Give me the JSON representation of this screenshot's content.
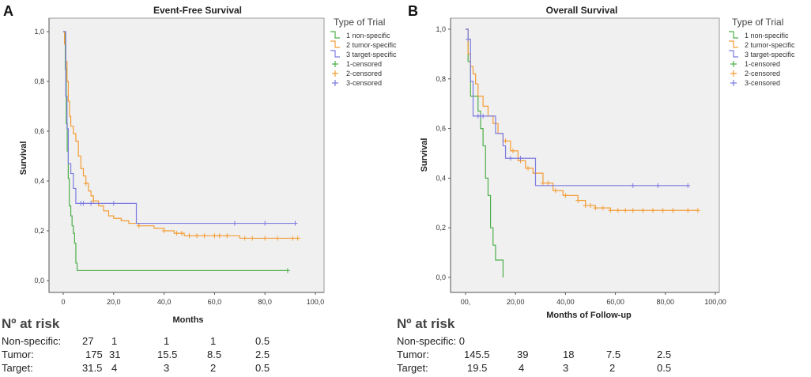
{
  "panels": [
    {
      "letter": "A",
      "chart_data": {
        "type": "line",
        "title": "Event-Free Survival",
        "xlabel": "Months",
        "ylabel": "Survival",
        "xlim": [
          0,
          100
        ],
        "ylim": [
          0,
          1
        ],
        "xticks": [
          0,
          20,
          40,
          60,
          80,
          100
        ],
        "xtick_labels": [
          "0",
          "20,0",
          "40,0",
          "60,0",
          "80,0",
          "100,0"
        ],
        "yticks": [
          0,
          0.2,
          0.4,
          0.6,
          0.8,
          1.0
        ],
        "ytick_labels": [
          "0,0",
          "0,2",
          "0,4",
          "0,6",
          "0,8",
          "1,0"
        ],
        "legend_title": "Type of Trial",
        "legend": [
          "1 non-specific",
          "2 tumor-specific",
          "3 target-specific",
          "1-censored",
          "2-censored",
          "3-censored"
        ],
        "series": [
          {
            "name": "1 non-specific",
            "color": "#4daf4a",
            "steps": [
              [
                0,
                1.0
              ],
              [
                0.8,
                0.85
              ],
              [
                1.2,
                0.63
              ],
              [
                1.6,
                0.52
              ],
              [
                2.0,
                0.41
              ],
              [
                2.4,
                0.3
              ],
              [
                3.0,
                0.26
              ],
              [
                3.5,
                0.22
              ],
              [
                4.0,
                0.19
              ],
              [
                4.5,
                0.15
              ],
              [
                5.0,
                0.07
              ],
              [
                5.5,
                0.04
              ],
              [
                89,
                0.04
              ]
            ],
            "censored": [
              89
            ]
          },
          {
            "name": "2 tumor-specific",
            "color": "#f39c34",
            "steps": [
              [
                0,
                1.0
              ],
              [
                0.5,
                0.95
              ],
              [
                1,
                0.88
              ],
              [
                1.5,
                0.8
              ],
              [
                2,
                0.72
              ],
              [
                2.5,
                0.66
              ],
              [
                3,
                0.62
              ],
              [
                4,
                0.59
              ],
              [
                5,
                0.56
              ],
              [
                6,
                0.5
              ],
              [
                7,
                0.45
              ],
              [
                8,
                0.42
              ],
              [
                9,
                0.39
              ],
              [
                10,
                0.36
              ],
              [
                11,
                0.34
              ],
              [
                12,
                0.32
              ],
              [
                14,
                0.3
              ],
              [
                16,
                0.28
              ],
              [
                18,
                0.26
              ],
              [
                20,
                0.25
              ],
              [
                23,
                0.24
              ],
              [
                26,
                0.23
              ],
              [
                30,
                0.22
              ],
              [
                36,
                0.21
              ],
              [
                40,
                0.2
              ],
              [
                44,
                0.19
              ],
              [
                48,
                0.18
              ],
              [
                58,
                0.18
              ],
              [
                70,
                0.17
              ],
              [
                94,
                0.17
              ]
            ],
            "censored": [
              9,
              12,
              30,
              40,
              45,
              47,
              50,
              53,
              56,
              60,
              62,
              65,
              72,
              75,
              80,
              85,
              91,
              93
            ]
          },
          {
            "name": "3 target-specific",
            "color": "#7b7be0",
            "steps": [
              [
                0,
                1.0
              ],
              [
                1,
                0.74
              ],
              [
                1.5,
                0.61
              ],
              [
                2,
                0.47
              ],
              [
                3,
                0.43
              ],
              [
                4,
                0.37
              ],
              [
                5,
                0.31
              ],
              [
                28,
                0.31
              ],
              [
                29,
                0.23
              ],
              [
                92,
                0.23
              ]
            ],
            "censored": [
              7,
              8,
              11,
              20,
              68,
              80,
              92
            ]
          }
        ]
      },
      "risk": {
        "title": "Nº at risk",
        "rows": [
          {
            "label": "Non-specific:",
            "values": [
              "27",
              "1",
              "1",
              "1",
              "0.5"
            ]
          },
          {
            "label": "Tumor:",
            "values": [
              "175",
              "31",
              "15.5",
              "8.5",
              "2.5"
            ]
          },
          {
            "label": "Target:",
            "values": [
              "31.5",
              "4",
              "3",
              "2",
              "0.5"
            ]
          }
        ]
      }
    },
    {
      "letter": "B",
      "chart_data": {
        "type": "line",
        "title": "Overall Survival",
        "xlabel": "Months of Follow-up",
        "ylabel": "Survival",
        "xlim": [
          0,
          100
        ],
        "ylim": [
          0,
          1
        ],
        "xticks": [
          0,
          20,
          40,
          60,
          80,
          100
        ],
        "xtick_labels": [
          "00,",
          "20,00",
          "40,00",
          "60,00",
          "80,00",
          "100,00"
        ],
        "yticks": [
          0,
          0.2,
          0.4,
          0.6,
          0.8,
          1.0
        ],
        "ytick_labels": [
          "0,0",
          "0,2",
          "0,4",
          "0,6",
          "0,8",
          "1,0"
        ],
        "legend_title": "Type of Trial",
        "legend": [
          "1 non-specific",
          "2 tumor-specific",
          "3 target-specific",
          "1-censored",
          "2-censored",
          "3-censored"
        ],
        "series": [
          {
            "name": "1 non-specific",
            "color": "#4daf4a",
            "steps": [
              [
                0,
                1.0
              ],
              [
                1,
                0.87
              ],
              [
                2,
                0.73
              ],
              [
                5,
                0.67
              ],
              [
                6,
                0.6
              ],
              [
                7,
                0.53
              ],
              [
                8,
                0.4
              ],
              [
                9,
                0.33
              ],
              [
                10,
                0.2
              ],
              [
                11,
                0.13
              ],
              [
                12,
                0.07
              ],
              [
                15,
                0.0
              ]
            ],
            "censored": []
          },
          {
            "name": "2 tumor-specific",
            "color": "#f39c34",
            "steps": [
              [
                0,
                1.0
              ],
              [
                1,
                0.9
              ],
              [
                2,
                0.85
              ],
              [
                3,
                0.82
              ],
              [
                4,
                0.78
              ],
              [
                5,
                0.73
              ],
              [
                7,
                0.69
              ],
              [
                9,
                0.65
              ],
              [
                11,
                0.62
              ],
              [
                13,
                0.58
              ],
              [
                15,
                0.55
              ],
              [
                18,
                0.51
              ],
              [
                21,
                0.47
              ],
              [
                24,
                0.44
              ],
              [
                27,
                0.42
              ],
              [
                31,
                0.38
              ],
              [
                35,
                0.35
              ],
              [
                39,
                0.33
              ],
              [
                45,
                0.31
              ],
              [
                48,
                0.29
              ],
              [
                52,
                0.28
              ],
              [
                58,
                0.27
              ],
              [
                93,
                0.27
              ]
            ],
            "censored": [
              16,
              19,
              22,
              25,
              28,
              31,
              33,
              36,
              40,
              45,
              48,
              50,
              52,
              55,
              58,
              61,
              64,
              67,
              71,
              75,
              79,
              83,
              89,
              93
            ]
          },
          {
            "name": "3 target-specific",
            "color": "#7b7be0",
            "steps": [
              [
                0,
                1.0
              ],
              [
                1,
                0.96
              ],
              [
                2,
                0.79
              ],
              [
                3,
                0.65
              ],
              [
                9,
                0.65
              ],
              [
                12,
                0.58
              ],
              [
                15,
                0.53
              ],
              [
                16,
                0.48
              ],
              [
                27,
                0.48
              ],
              [
                28,
                0.37
              ],
              [
                89,
                0.37
              ]
            ],
            "censored": [
              1,
              5,
              6,
              7,
              18,
              22,
              67,
              77,
              89
            ]
          }
        ]
      },
      "risk": {
        "title": "Nº at risk",
        "rows": [
          {
            "label": "Non-specific: 0",
            "values": []
          },
          {
            "label": "Tumor:",
            "values": [
              "145.5",
              "39",
              "18",
              "7.5",
              "2.5"
            ]
          },
          {
            "label": "Target:",
            "values": [
              "19.5",
              "4",
              "3",
              "2",
              "0.5"
            ]
          }
        ]
      }
    }
  ]
}
